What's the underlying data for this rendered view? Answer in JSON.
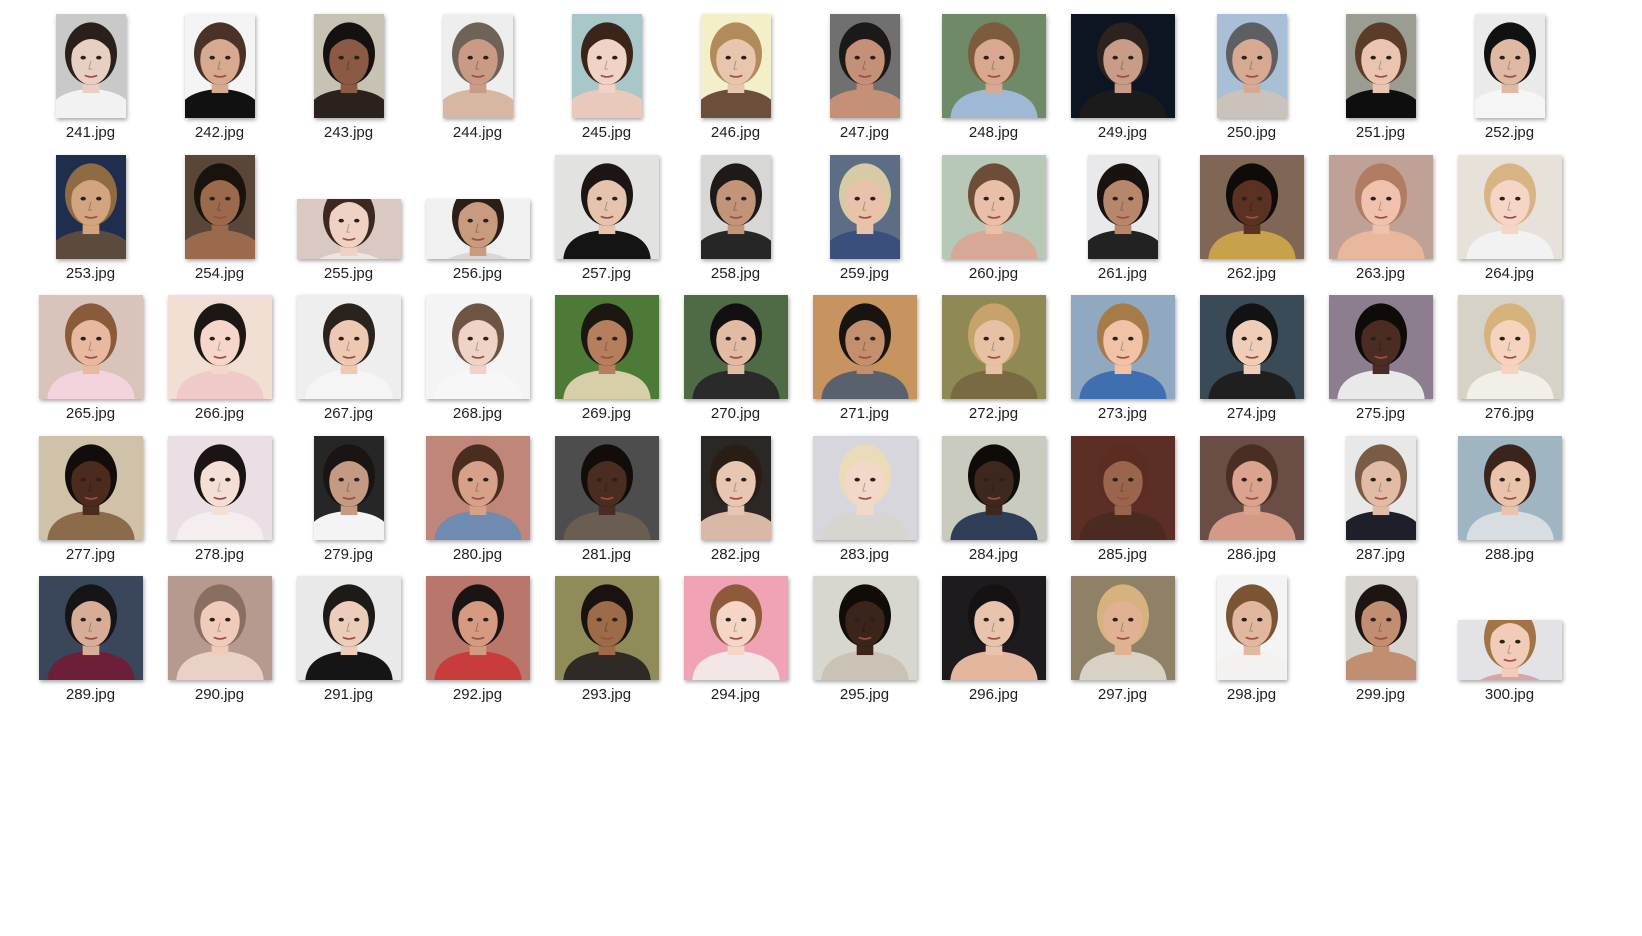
{
  "window": {
    "view": "large-icons",
    "files": [
      {
        "name": "241.jpg",
        "bg": "#c9c9c9",
        "skin": "#e8cfc4",
        "hair": "#2a1f1b",
        "shirt": "#f2f2f2",
        "shape": "portrait"
      },
      {
        "name": "242.jpg",
        "bg": "#f4f4f4",
        "skin": "#d7a98f",
        "hair": "#4a3326",
        "shirt": "#111111",
        "shape": "portrait"
      },
      {
        "name": "243.jpg",
        "bg": "#c7c2b4",
        "skin": "#8a5a44",
        "hair": "#151111",
        "shirt": "#2b221d",
        "shape": "portrait"
      },
      {
        "name": "244.jpg",
        "bg": "#eeeeee",
        "skin": "#c99a84",
        "hair": "#6f6257",
        "shirt": "#d7b7a2",
        "shape": "portrait"
      },
      {
        "name": "245.jpg",
        "bg": "#a7c7c9",
        "skin": "#f0d3c6",
        "hair": "#3b2519",
        "shirt": "#e8c9bb",
        "shape": "portrait"
      },
      {
        "name": "246.jpg",
        "bg": "#f3efc9",
        "skin": "#e8c6ad",
        "hair": "#b28b5b",
        "shirt": "#6b4f3b",
        "shape": "portrait"
      },
      {
        "name": "247.jpg",
        "bg": "#707070",
        "skin": "#c49078",
        "hair": "#1c1a18",
        "shirt": "#c49078",
        "shape": "portrait"
      },
      {
        "name": "248.jpg",
        "bg": "#6f8a66",
        "skin": "#d8a88f",
        "hair": "#7d5b3e",
        "shirt": "#9fb8d6",
        "shape": "square"
      },
      {
        "name": "249.jpg",
        "bg": "#0d1422",
        "skin": "#c89c86",
        "hair": "#2c231f",
        "shirt": "#1b1b1b",
        "shape": "square"
      },
      {
        "name": "250.jpg",
        "bg": "#a8bfd6",
        "skin": "#d7a993",
        "hair": "#5d5f63",
        "shirt": "#c9c3bb",
        "shape": "portrait"
      },
      {
        "name": "251.jpg",
        "bg": "#9b9d93",
        "skin": "#eac4b1",
        "hair": "#5b3c29",
        "shirt": "#0e0e0e",
        "shape": "portrait"
      },
      {
        "name": "252.jpg",
        "bg": "#eaeaea",
        "skin": "#e0b9a4",
        "hair": "#111111",
        "shirt": "#f5f5f5",
        "shape": "portrait"
      },
      {
        "name": "253.jpg",
        "bg": "#1f2e4d",
        "skin": "#d3a480",
        "hair": "#8f6a42",
        "shirt": "#5c4a3c",
        "shape": "portrait"
      },
      {
        "name": "254.jpg",
        "bg": "#5a4638",
        "skin": "#9b6a4d",
        "hair": "#1a120d",
        "shirt": "#9b6a4d",
        "shape": "portrait"
      },
      {
        "name": "255.jpg",
        "bg": "#d9c9c2",
        "skin": "#f0d2c4",
        "hair": "#3c2820",
        "shirt": "#ece6e2",
        "shape": "landscape"
      },
      {
        "name": "256.jpg",
        "bg": "#f0f0f0",
        "skin": "#c89a7e",
        "hair": "#2a1e17",
        "shirt": "#d8d8d8",
        "shape": "landscape"
      },
      {
        "name": "257.jpg",
        "bg": "#e2e2e0",
        "skin": "#e6c3ad",
        "hair": "#1c1513",
        "shirt": "#141414",
        "shape": "square"
      },
      {
        "name": "258.jpg",
        "bg": "#d7d7d5",
        "skin": "#c29478",
        "hair": "#1f1a17",
        "shirt": "#262626",
        "shape": "portrait"
      },
      {
        "name": "259.jpg",
        "bg": "#5e6d86",
        "skin": "#e8c2a9",
        "hair": "#d7cba6",
        "shirt": "#3a4f7c",
        "shape": "portrait"
      },
      {
        "name": "260.jpg",
        "bg": "#b8c8b6",
        "skin": "#e9bfa8",
        "hair": "#6d4c38",
        "shirt": "#d7a896",
        "shape": "square"
      },
      {
        "name": "261.jpg",
        "bg": "#e9e9ec",
        "skin": "#b7876c",
        "hair": "#18130f",
        "shirt": "#222222",
        "shape": "portrait"
      },
      {
        "name": "262.jpg",
        "bg": "#7f6655",
        "skin": "#5b3222",
        "hair": "#0f0b09",
        "shirt": "#c8a24a",
        "shape": "square"
      },
      {
        "name": "263.jpg",
        "bg": "#bfa196",
        "skin": "#f0c1ac",
        "hair": "#b07d62",
        "shirt": "#e8b79e",
        "shape": "square"
      },
      {
        "name": "264.jpg",
        "bg": "#e7e1da",
        "skin": "#f5d6c6",
        "hair": "#d8b484",
        "shirt": "#f2f2f2",
        "shape": "square"
      },
      {
        "name": "265.jpg",
        "bg": "#d9c4bb",
        "skin": "#e8b9a0",
        "hair": "#8a5b3b",
        "shirt": "#f3d3dc",
        "shape": "square"
      },
      {
        "name": "266.jpg",
        "bg": "#f1dfd4",
        "skin": "#f6d6c8",
        "hair": "#1d1714",
        "shirt": "#f0c9c9",
        "shape": "square"
      },
      {
        "name": "267.jpg",
        "bg": "#eeeeee",
        "skin": "#edc8b2",
        "hair": "#2a221d",
        "shirt": "#f5f5f5",
        "shape": "square"
      },
      {
        "name": "268.jpg",
        "bg": "#f4f4f4",
        "skin": "#efd3c6",
        "hair": "#6d5443",
        "shirt": "#f7f7f7",
        "shape": "square"
      },
      {
        "name": "269.jpg",
        "bg": "#4d7a37",
        "skin": "#b57f5d",
        "hair": "#1d1712",
        "shirt": "#d7cfa9",
        "shape": "square"
      },
      {
        "name": "270.jpg",
        "bg": "#4f6b46",
        "skin": "#e3bba3",
        "hair": "#121010",
        "shirt": "#2a2a2a",
        "shape": "square"
      },
      {
        "name": "271.jpg",
        "bg": "#c7935e",
        "skin": "#c48f6c",
        "hair": "#1a1410",
        "shirt": "#59616f",
        "shape": "square"
      },
      {
        "name": "272.jpg",
        "bg": "#8f8a54",
        "skin": "#e7c1a4",
        "hair": "#c7a36b",
        "shirt": "#7a6a43",
        "shape": "square"
      },
      {
        "name": "273.jpg",
        "bg": "#90a9c0",
        "skin": "#f0c3a6",
        "hair": "#a77b48",
        "shirt": "#3f6fb0",
        "shape": "square"
      },
      {
        "name": "274.jpg",
        "bg": "#3b4a57",
        "skin": "#f0cdb8",
        "hair": "#121212",
        "shirt": "#1f1f1f",
        "shape": "square"
      },
      {
        "name": "275.jpg",
        "bg": "#8d7e8f",
        "skin": "#4a2c22",
        "hair": "#0f0b09",
        "shirt": "#e9e9e9",
        "shape": "square"
      },
      {
        "name": "276.jpg",
        "bg": "#d7d2c7",
        "skin": "#f5d3be",
        "hair": "#d6b27c",
        "shirt": "#f1efe8",
        "shape": "square"
      },
      {
        "name": "277.jpg",
        "bg": "#cfc2a9",
        "skin": "#4a2b1e",
        "hair": "#120d0a",
        "shirt": "#8b6b4a",
        "shape": "square"
      },
      {
        "name": "278.jpg",
        "bg": "#eadfe4",
        "skin": "#f5ded4",
        "hair": "#1a1514",
        "shirt": "#f4eeee",
        "shape": "square"
      },
      {
        "name": "279.jpg",
        "bg": "#262626",
        "skin": "#c59a82",
        "hair": "#1a1513",
        "shirt": "#f4f4f4",
        "shape": "portrait"
      },
      {
        "name": "280.jpg",
        "bg": "#c0867a",
        "skin": "#d7a088",
        "hair": "#4a2d1e",
        "shirt": "#6f8bb0",
        "shape": "square"
      },
      {
        "name": "281.jpg",
        "bg": "#4d4d4d",
        "skin": "#4a2d21",
        "hair": "#120d0a",
        "shirt": "#6a5e53",
        "shape": "square"
      },
      {
        "name": "282.jpg",
        "bg": "#2b2725",
        "skin": "#e7c6b2",
        "hair": "#2a1d16",
        "shirt": "#d9b8a5",
        "shape": "portrait"
      },
      {
        "name": "283.jpg",
        "bg": "#d6d6dc",
        "skin": "#f1d8c9",
        "hair": "#eadcb9",
        "shirt": "#d8d4cf",
        "shape": "square"
      },
      {
        "name": "284.jpg",
        "bg": "#c8cbbd",
        "skin": "#3e281d",
        "hair": "#0f0b09",
        "shirt": "#2f3e57",
        "shape": "square"
      },
      {
        "name": "285.jpg",
        "bg": "#5c2e25",
        "skin": "#9b644d",
        "hair": "#5a2c22",
        "shirt": "#4b2a22",
        "shape": "square"
      },
      {
        "name": "286.jpg",
        "bg": "#6a4d45",
        "skin": "#dba38e",
        "hair": "#4a2e24",
        "shirt": "#d49a86",
        "shape": "square"
      },
      {
        "name": "287.jpg",
        "bg": "#e8e8e8",
        "skin": "#e2bba6",
        "hair": "#7a5b43",
        "shirt": "#1d1f2b",
        "shape": "portrait"
      },
      {
        "name": "288.jpg",
        "bg": "#9fb5c2",
        "skin": "#eac3ac",
        "hair": "#3a241b",
        "shirt": "#d8dde2",
        "shape": "square"
      },
      {
        "name": "289.jpg",
        "bg": "#3a4659",
        "skin": "#d8ad98",
        "hair": "#151515",
        "shirt": "#6d1f3a",
        "shape": "square"
      },
      {
        "name": "290.jpg",
        "bg": "#b79a8f",
        "skin": "#f0cbbb",
        "hair": "#8a6e62",
        "shirt": "#e9d1c8",
        "shape": "square"
      },
      {
        "name": "291.jpg",
        "bg": "#e9e9e9",
        "skin": "#eccdb9",
        "hair": "#1d1a18",
        "shirt": "#151515",
        "shape": "square"
      },
      {
        "name": "292.jpg",
        "bg": "#b9766a",
        "skin": "#d69a80",
        "hair": "#1a1514",
        "shirt": "#c93c3c",
        "shape": "square"
      },
      {
        "name": "293.jpg",
        "bg": "#8f8c5a",
        "skin": "#9d6a4a",
        "hair": "#1a1210",
        "shirt": "#2f2a25",
        "shape": "square"
      },
      {
        "name": "294.jpg",
        "bg": "#f0a3b5",
        "skin": "#f5d5c6",
        "hair": "#8f5a3b",
        "shirt": "#f3e6e6",
        "shape": "square"
      },
      {
        "name": "295.jpg",
        "bg": "#d7d7d0",
        "skin": "#3b2419",
        "hair": "#120c09",
        "shirt": "#c9c2b5",
        "shape": "square"
      },
      {
        "name": "296.jpg",
        "bg": "#1d1b1e",
        "skin": "#e9c4ad",
        "hair": "#141212",
        "shirt": "#e5b69e",
        "shape": "square"
      },
      {
        "name": "297.jpg",
        "bg": "#8e8168",
        "skin": "#e1b193",
        "hair": "#d7b27f",
        "shirt": "#d7d2c3",
        "shape": "square"
      },
      {
        "name": "298.jpg",
        "bg": "#f4f4f4",
        "skin": "#e1b79f",
        "hair": "#7b5434",
        "shirt": "#f4f1f1",
        "shape": "portrait"
      },
      {
        "name": "299.jpg",
        "bg": "#d8d4d0",
        "skin": "#c18e72",
        "hair": "#1c1512",
        "shirt": "#c18e72",
        "shape": "portrait"
      },
      {
        "name": "300.jpg",
        "bg": "#e3e3e7",
        "skin": "#f1ccb8",
        "hair": "#a17345",
        "shirt": "#d8a4a4",
        "shape": "landscape"
      }
    ]
  }
}
